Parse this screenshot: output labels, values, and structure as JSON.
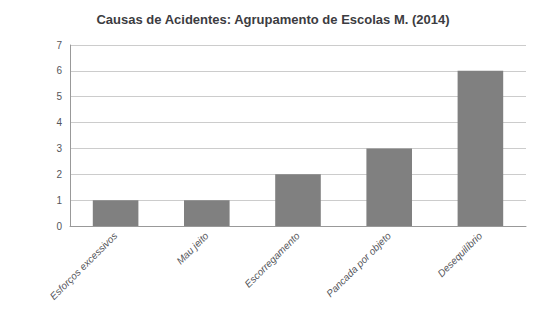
{
  "chart_data": {
    "type": "bar",
    "title": "Causas de Acidentes: Agrupamento de Escolas M. (2014)",
    "categories": [
      "Esforços excessivos",
      "Mau jeito",
      "Escorregamento",
      "Pancada por objeto",
      "Desequilíbrio"
    ],
    "values": [
      1,
      1,
      2,
      3,
      6
    ],
    "color": "#808080",
    "ylim": [
      0,
      7
    ],
    "yticks": [
      0,
      1,
      2,
      3,
      4,
      5,
      6,
      7
    ],
    "grid": true
  }
}
